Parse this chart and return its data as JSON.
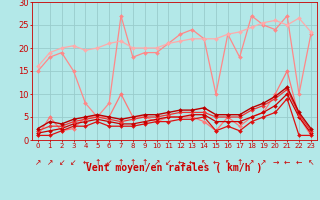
{
  "background_color": "#b3e8e8",
  "grid_color": "#99cccc",
  "xlabel": "Vent moyen/en rafales ( km/h )",
  "xlabel_color": "#cc0000",
  "xlabel_fontsize": 7,
  "tick_color": "#cc0000",
  "xlim": [
    -0.5,
    23.5
  ],
  "ylim": [
    0,
    30
  ],
  "yticks": [
    0,
    5,
    10,
    15,
    20,
    25,
    30
  ],
  "xticks": [
    0,
    1,
    2,
    3,
    4,
    5,
    6,
    7,
    8,
    9,
    10,
    11,
    12,
    13,
    14,
    15,
    16,
    17,
    18,
    19,
    20,
    21,
    22,
    23
  ],
  "series": [
    {
      "label": "rafales_jagged",
      "color": "#ff8888",
      "linewidth": 0.9,
      "marker": "D",
      "markersize": 2.0,
      "data_x": [
        0,
        1,
        2,
        3,
        4,
        5,
        6,
        7,
        8,
        9,
        10,
        11,
        12,
        13,
        14,
        15,
        16,
        17,
        18,
        19,
        20,
        21,
        22,
        23
      ],
      "data_y": [
        15,
        18,
        19,
        15,
        8,
        5,
        8,
        27,
        18,
        19,
        19,
        21,
        23,
        24,
        22,
        10,
        23,
        18,
        27,
        25,
        24,
        27,
        10,
        23
      ]
    },
    {
      "label": "trend_upper",
      "color": "#ffaaaa",
      "linewidth": 0.9,
      "marker": "D",
      "markersize": 2.0,
      "data_x": [
        0,
        1,
        2,
        3,
        4,
        5,
        6,
        7,
        8,
        9,
        10,
        11,
        12,
        13,
        14,
        15,
        16,
        17,
        18,
        19,
        20,
        21,
        22,
        23
      ],
      "data_y": [
        16,
        19,
        20,
        20.5,
        19.5,
        20,
        21,
        21.5,
        20,
        20,
        20,
        21,
        21.5,
        22,
        22,
        22,
        23,
        23.5,
        24.5,
        25.5,
        26,
        25,
        26.5,
        23.5
      ]
    },
    {
      "label": "vent_moyen_medium",
      "color": "#ff7777",
      "linewidth": 0.9,
      "marker": "D",
      "markersize": 2.0,
      "data_x": [
        0,
        1,
        2,
        3,
        4,
        5,
        6,
        7,
        8,
        9,
        10,
        11,
        12,
        13,
        14,
        15,
        16,
        17,
        18,
        19,
        20,
        21,
        22,
        23
      ],
      "data_y": [
        1,
        5,
        2,
        2.5,
        5,
        5,
        5,
        10,
        5,
        5,
        4,
        5,
        5,
        5,
        4,
        2,
        5,
        3,
        5,
        6,
        10,
        15,
        5,
        1
      ]
    },
    {
      "label": "line_dark1",
      "color": "#dd1111",
      "linewidth": 0.9,
      "marker": "D",
      "markersize": 2.0,
      "data_x": [
        0,
        1,
        2,
        3,
        4,
        5,
        6,
        7,
        8,
        9,
        10,
        11,
        12,
        13,
        14,
        15,
        16,
        17,
        18,
        19,
        20,
        21,
        22,
        23
      ],
      "data_y": [
        1,
        1,
        2,
        3,
        3,
        4,
        3,
        3,
        3,
        3.5,
        4,
        4,
        4.5,
        4.5,
        5,
        2,
        3,
        2,
        4,
        5,
        6,
        9,
        1,
        1
      ]
    },
    {
      "label": "line_dark2",
      "color": "#cc0000",
      "linewidth": 0.9,
      "marker": "D",
      "markersize": 2.0,
      "data_x": [
        0,
        1,
        2,
        3,
        4,
        5,
        6,
        7,
        8,
        9,
        10,
        11,
        12,
        13,
        14,
        15,
        16,
        17,
        18,
        19,
        20,
        21,
        22,
        23
      ],
      "data_y": [
        1.5,
        2,
        2.5,
        3.5,
        4,
        4.5,
        4,
        3.5,
        3.5,
        4,
        4.5,
        5,
        5,
        5.5,
        5.5,
        4,
        4,
        4,
        5,
        6,
        7.5,
        10,
        5,
        1.5
      ]
    },
    {
      "label": "line_dark3",
      "color": "#ee3333",
      "linewidth": 0.9,
      "marker": "D",
      "markersize": 2.0,
      "data_x": [
        0,
        1,
        2,
        3,
        4,
        5,
        6,
        7,
        8,
        9,
        10,
        11,
        12,
        13,
        14,
        15,
        16,
        17,
        18,
        19,
        20,
        21,
        22,
        23
      ],
      "data_y": [
        2,
        3,
        3,
        4,
        4.5,
        5,
        4.5,
        4,
        4.5,
        5,
        5,
        5.5,
        6,
        6,
        6,
        5,
        5,
        5,
        6.5,
        7.5,
        9,
        11,
        5.5,
        2
      ]
    },
    {
      "label": "line_dark4",
      "color": "#bb0000",
      "linewidth": 1.0,
      "marker": "D",
      "markersize": 2.0,
      "data_x": [
        0,
        1,
        2,
        3,
        4,
        5,
        6,
        7,
        8,
        9,
        10,
        11,
        12,
        13,
        14,
        15,
        16,
        17,
        18,
        19,
        20,
        21,
        22,
        23
      ],
      "data_y": [
        2.5,
        4,
        3.5,
        4.5,
        5,
        5.5,
        5,
        4.5,
        5,
        5.5,
        5.5,
        6,
        6.5,
        6.5,
        7,
        5.5,
        5.5,
        5.5,
        7,
        8,
        9.5,
        11.5,
        6,
        2.5
      ]
    }
  ],
  "arrow_symbols": [
    "↗",
    "↗",
    "↙",
    "↙",
    "←",
    "↑",
    "↙",
    "↑",
    "↑",
    "↑",
    "↗",
    "↙",
    "←",
    "←",
    "↖",
    "←",
    "↖",
    "↑",
    "↗",
    "↗",
    "→",
    "←",
    "←",
    "↖"
  ],
  "arrow_color": "#cc0000",
  "arrow_fontsize": 5.5,
  "ylabel_fontsize": 6,
  "ytick_fontsize": 6,
  "xtick_fontsize": 5
}
